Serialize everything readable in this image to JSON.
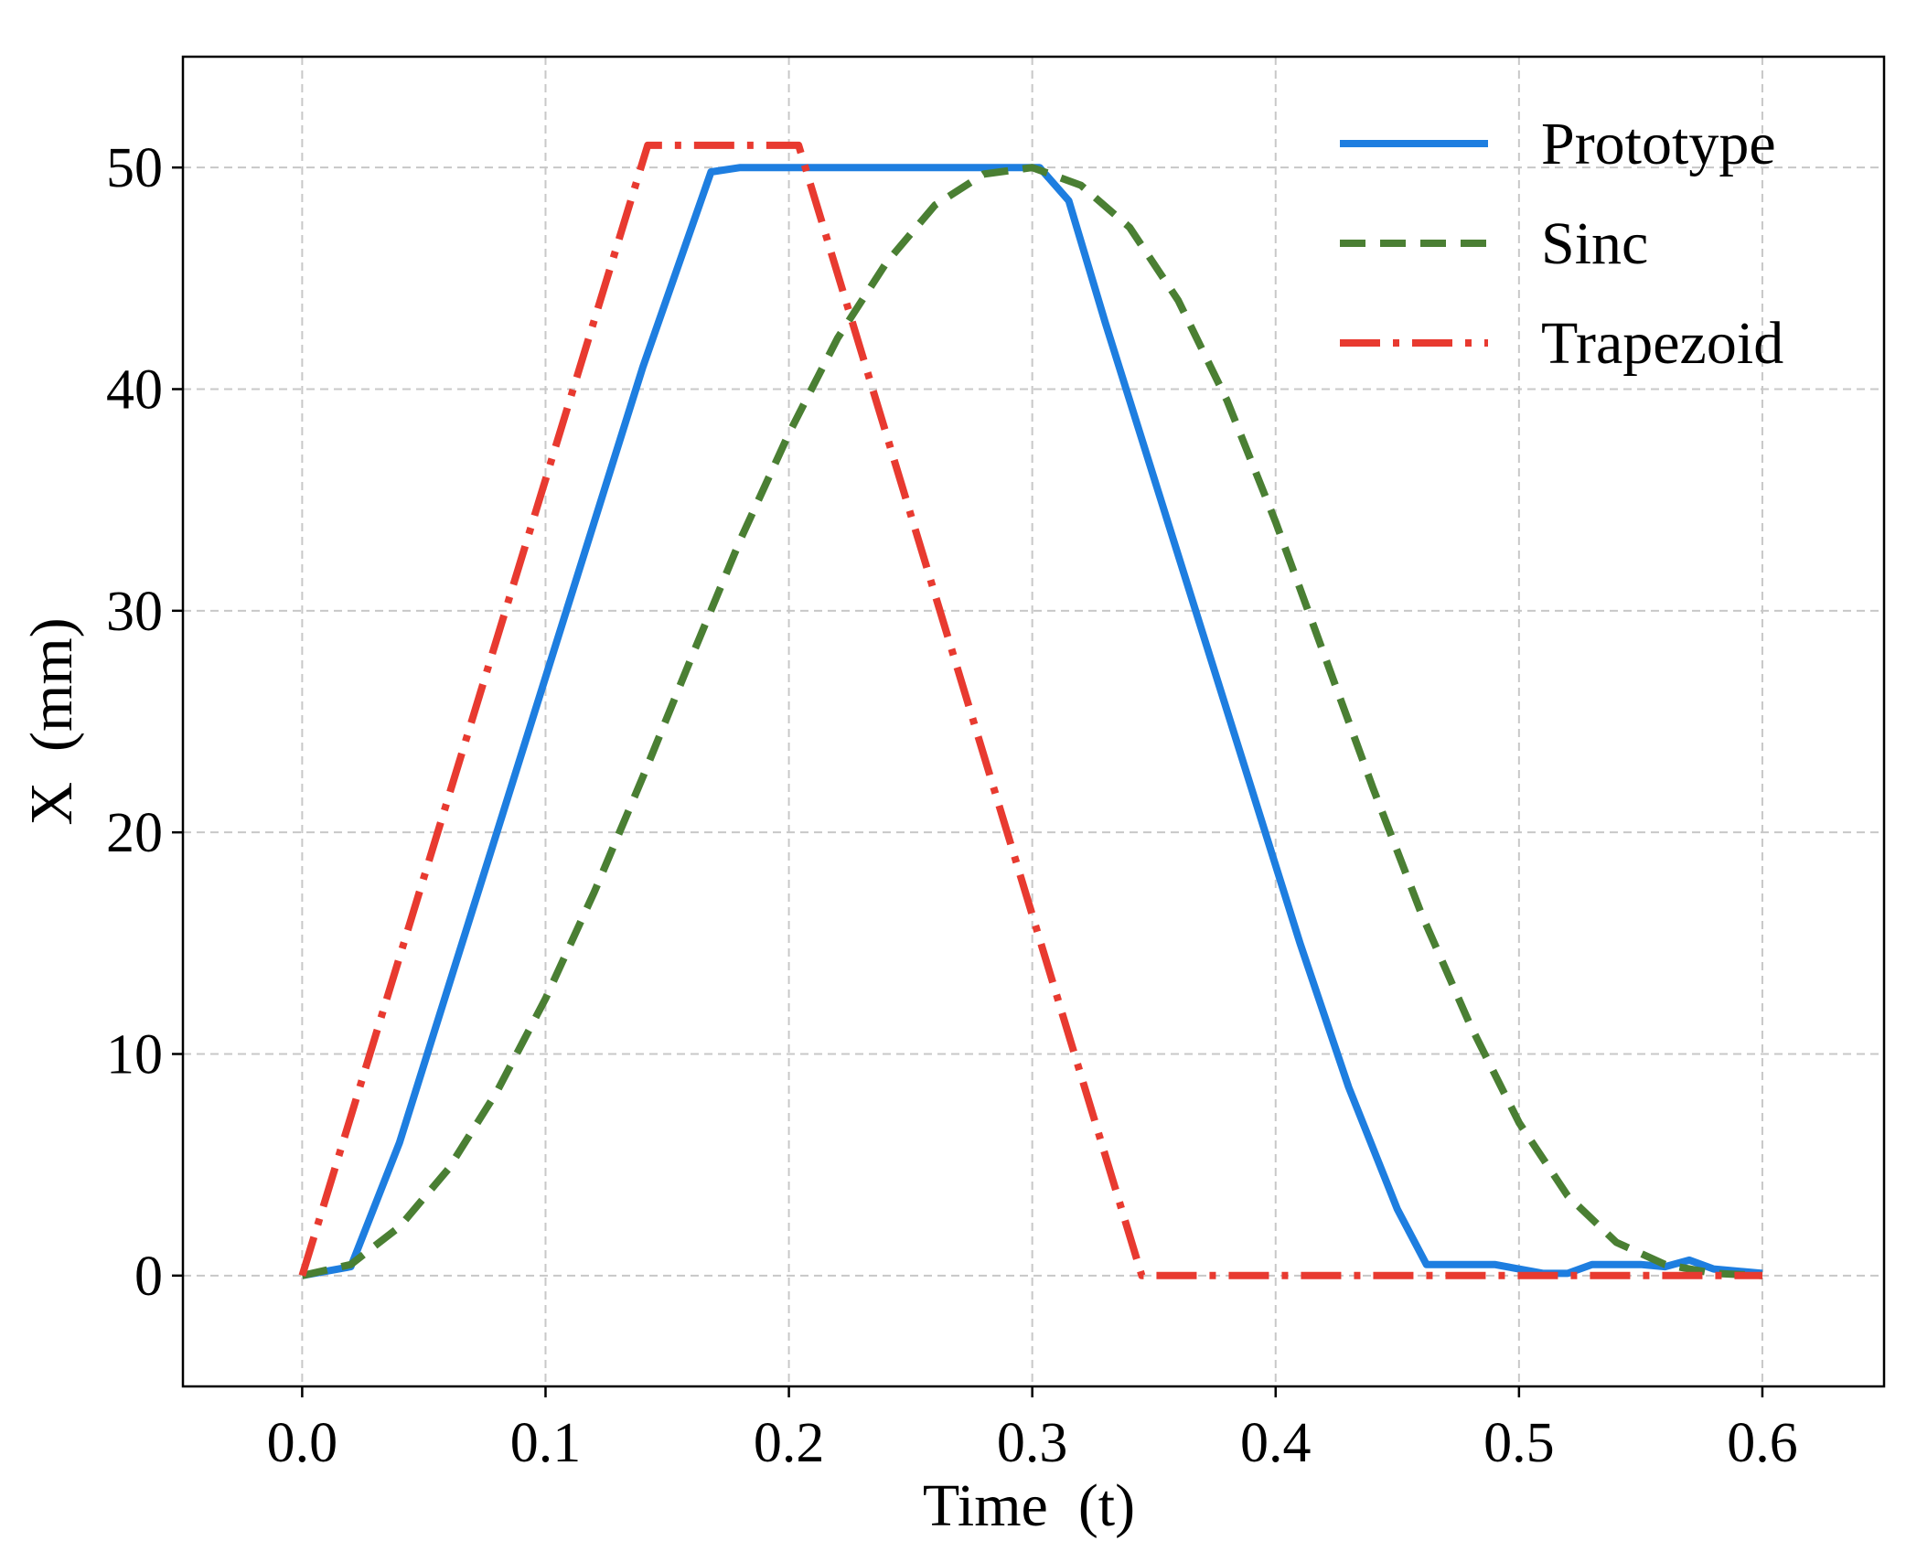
{
  "chart_data": {
    "type": "line",
    "title": "",
    "xlabel": "Time  (t)",
    "ylabel": "X  (mm)",
    "xlim": [
      -0.049,
      0.65
    ],
    "ylim": [
      -5,
      55
    ],
    "xticks": [
      0.0,
      0.1,
      0.2,
      0.3,
      0.4,
      0.5,
      0.6
    ],
    "xtick_labels": [
      "0.0",
      "0.1",
      "0.2",
      "0.3",
      "0.4",
      "0.5",
      "0.6"
    ],
    "yticks": [
      0,
      10,
      20,
      30,
      40,
      50
    ],
    "ytick_labels": [
      "0",
      "10",
      "20",
      "30",
      "40",
      "50"
    ],
    "grid": true,
    "legend_position": "top-right",
    "series": [
      {
        "name": "Prototype",
        "color": "#1e7ee0",
        "style": "solid",
        "x": [
          0.0,
          0.02,
          0.04,
          0.06,
          0.08,
          0.1,
          0.12,
          0.14,
          0.168,
          0.18,
          0.2,
          0.22,
          0.25,
          0.28,
          0.303,
          0.315,
          0.33,
          0.35,
          0.37,
          0.39,
          0.41,
          0.43,
          0.45,
          0.462,
          0.47,
          0.49,
          0.51,
          0.52,
          0.53,
          0.55,
          0.56,
          0.57,
          0.58,
          0.6
        ],
        "y": [
          0.0,
          0.4,
          6.0,
          13.0,
          20.0,
          27.0,
          34.0,
          41.0,
          49.8,
          50.0,
          50.0,
          50.0,
          50.0,
          50.0,
          50.0,
          48.5,
          43.0,
          36.0,
          29.0,
          22.0,
          15.0,
          8.5,
          3.0,
          0.5,
          0.5,
          0.5,
          0.1,
          0.1,
          0.5,
          0.5,
          0.4,
          0.7,
          0.3,
          0.1
        ]
      },
      {
        "name": "Sinc",
        "color": "#4a7f33",
        "style": "dashed",
        "x": [
          0.0,
          0.02,
          0.04,
          0.06,
          0.08,
          0.1,
          0.12,
          0.14,
          0.16,
          0.18,
          0.2,
          0.22,
          0.24,
          0.26,
          0.28,
          0.3,
          0.32,
          0.34,
          0.36,
          0.38,
          0.4,
          0.42,
          0.44,
          0.46,
          0.48,
          0.5,
          0.52,
          0.54,
          0.56,
          0.58,
          0.6
        ],
        "y": [
          0.0,
          0.5,
          2.2,
          4.8,
          8.3,
          12.5,
          17.3,
          22.5,
          27.9,
          33.2,
          38.0,
          42.3,
          45.7,
          48.3,
          49.7,
          50.0,
          49.2,
          47.3,
          44.0,
          39.5,
          34.0,
          28.0,
          22.0,
          16.3,
          11.3,
          6.9,
          3.6,
          1.5,
          0.5,
          0.1,
          0.0
        ]
      },
      {
        "name": "Trapezoid",
        "color": "#e83a30",
        "style": "dashdot",
        "x": [
          0.0,
          0.142,
          0.204,
          0.345,
          0.6
        ],
        "y": [
          0.0,
          51.0,
          51.0,
          0.0,
          0.0
        ]
      }
    ]
  }
}
